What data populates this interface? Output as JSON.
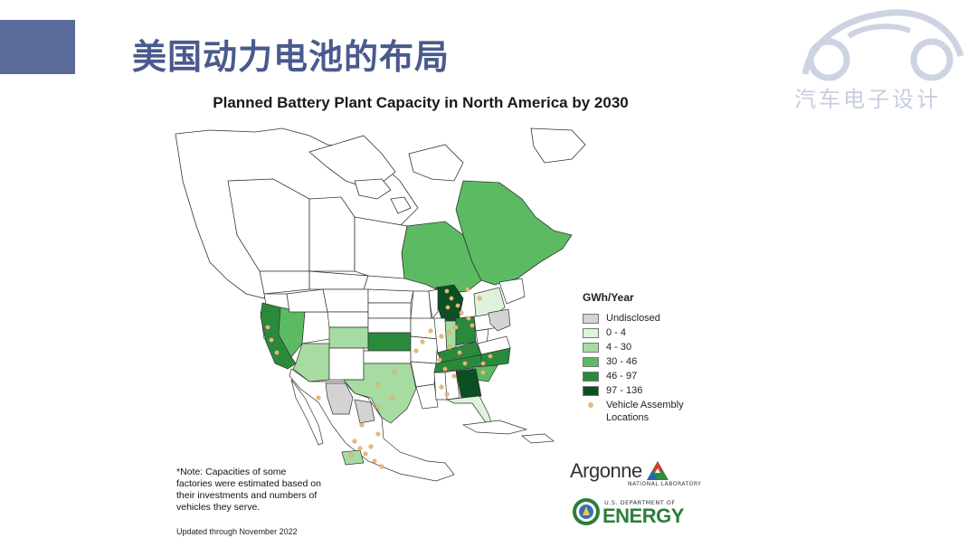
{
  "slide": {
    "title": "美国动力电池的布局",
    "logo_text": "汽车电子设计"
  },
  "map": {
    "title": "Planned Battery Plant Capacity in North America by 2030",
    "legend": {
      "title": "GWh/Year",
      "items": [
        {
          "label": "Undisclosed",
          "color": "#d3d3d3"
        },
        {
          "label": "0 - 4",
          "color": "#dff3dc"
        },
        {
          "label": "4 - 30",
          "color": "#a6dca1"
        },
        {
          "label": "30 - 46",
          "color": "#5cbb62"
        },
        {
          "label": "46 - 97",
          "color": "#2a8a3c"
        },
        {
          "label": "97 - 136",
          "color": "#0b4f23"
        }
      ],
      "vehicle_label_1": "Vehicle Assembly",
      "vehicle_label_2": "Locations",
      "vehicle_color": "#e9b97a"
    },
    "note": "*Note: Capacities of some factories were estimated based on their investments and numbers of vehicles they serve.",
    "updated": "Updated through November 2022"
  },
  "logos": {
    "argonne_name": "Argonne",
    "argonne_sub": "NATIONAL LABORATORY",
    "doe_sub": "U.S. DEPARTMENT OF",
    "doe_name": "ENERGY"
  }
}
